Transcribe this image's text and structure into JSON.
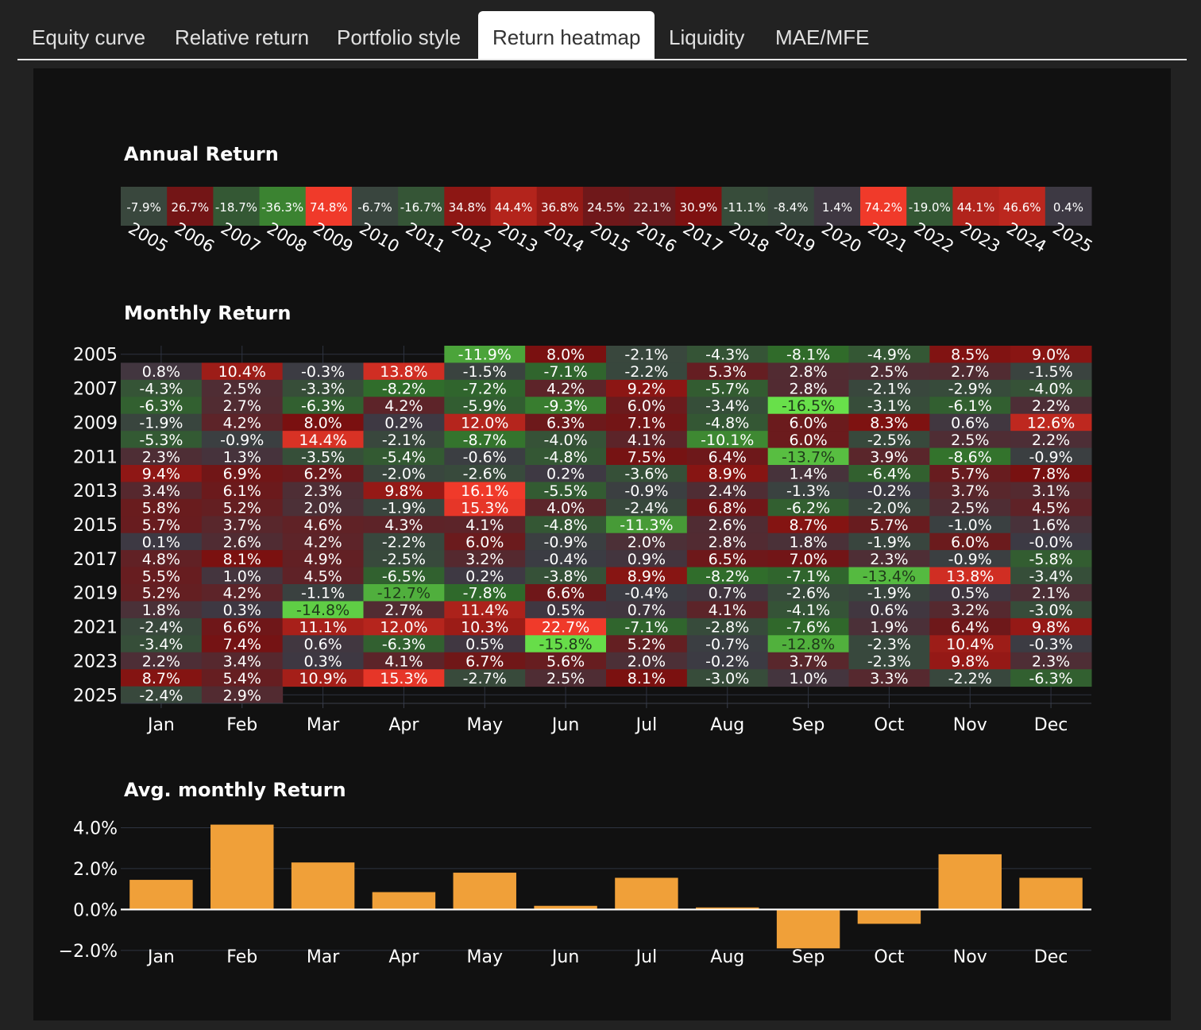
{
  "tabs": [
    {
      "label": "Equity curve",
      "active": false
    },
    {
      "label": "Relative return",
      "active": false
    },
    {
      "label": "Portfolio style",
      "active": false
    },
    {
      "label": "Return heatmap",
      "active": true
    },
    {
      "label": "Liquidity",
      "active": false
    },
    {
      "label": "MAE/MFE",
      "active": false
    }
  ],
  "colors": {
    "background": "#111111",
    "neutral": "#3c3a44",
    "positive_max": "#f03a2a",
    "positive_mid": "#7a1010",
    "negative_mid": "#2f6a2a",
    "negative_max": "#68e04a",
    "bar": "#f0a039"
  },
  "chart_data": [
    {
      "type": "heatmap",
      "title": "Annual Return",
      "x": [
        "2005",
        "2006",
        "2007",
        "2008",
        "2009",
        "2010",
        "2011",
        "2012",
        "2013",
        "2014",
        "2015",
        "2016",
        "2017",
        "2018",
        "2019",
        "2020",
        "2021",
        "2022",
        "2023",
        "2024",
        "2025"
      ],
      "values": [
        -7.9,
        26.7,
        -18.7,
        -36.3,
        74.8,
        -6.7,
        -16.7,
        34.8,
        44.4,
        36.8,
        24.5,
        22.1,
        30.9,
        -11.1,
        -8.4,
        1.4,
        74.2,
        -19.0,
        44.1,
        46.6,
        0.4
      ],
      "labels": [
        "-7.9%",
        "26.7%",
        "-18.7%",
        "-36.3%",
        "74.8%",
        "-6.7%",
        "-16.7%",
        "34.8%",
        "44.4%",
        "36.8%",
        "24.5%",
        "22.1%",
        "30.9%",
        "-11.1%",
        "-8.4%",
        "1.4%",
        "74.2%",
        "-19.0%",
        "44.1%",
        "46.6%",
        "0.4%"
      ]
    },
    {
      "type": "heatmap",
      "title": "Monthly Return",
      "x": [
        "Jan",
        "Feb",
        "Mar",
        "Apr",
        "May",
        "Jun",
        "Jul",
        "Aug",
        "Sep",
        "Oct",
        "Nov",
        "Dec"
      ],
      "y": [
        "2005",
        "2006",
        "2007",
        "2008",
        "2009",
        "2010",
        "2011",
        "2012",
        "2013",
        "2014",
        "2015",
        "2016",
        "2017",
        "2018",
        "2019",
        "2020",
        "2021",
        "2022",
        "2023",
        "2024",
        "2025"
      ],
      "y_tick_labels": [
        "2005",
        "2007",
        "2009",
        "2011",
        "2013",
        "2015",
        "2017",
        "2019",
        "2021",
        "2023",
        "2025"
      ],
      "values": [
        [
          null,
          null,
          null,
          null,
          -11.9,
          8.0,
          -2.1,
          -4.3,
          -8.1,
          -4.9,
          8.5,
          9.0
        ],
        [
          0.8,
          10.4,
          -0.3,
          13.8,
          -1.5,
          -7.1,
          -2.2,
          5.3,
          2.8,
          2.5,
          2.7,
          -1.5
        ],
        [
          -4.3,
          2.5,
          -3.3,
          -8.2,
          -7.2,
          4.2,
          9.2,
          -5.7,
          2.8,
          -2.1,
          -2.9,
          -4.0
        ],
        [
          -6.3,
          2.7,
          -6.3,
          4.2,
          -5.9,
          -9.3,
          6.0,
          -3.4,
          -16.5,
          -3.1,
          -6.1,
          2.2
        ],
        [
          -1.9,
          4.2,
          8.0,
          0.2,
          12.0,
          6.3,
          7.1,
          -4.8,
          6.0,
          8.3,
          0.6,
          12.6
        ],
        [
          -5.3,
          -0.9,
          14.4,
          -2.1,
          -8.7,
          -4.0,
          4.1,
          -10.1,
          6.0,
          -2.5,
          2.5,
          2.2
        ],
        [
          2.3,
          1.3,
          -3.5,
          -5.4,
          -0.6,
          -4.8,
          7.5,
          6.4,
          -13.7,
          3.9,
          -8.6,
          -0.9
        ],
        [
          9.4,
          6.9,
          6.2,
          -2.0,
          -2.6,
          0.2,
          -3.6,
          8.9,
          1.4,
          -6.4,
          5.7,
          7.8
        ],
        [
          3.4,
          6.1,
          2.3,
          9.8,
          16.1,
          -5.5,
          -0.9,
          2.4,
          -1.3,
          -0.2,
          3.7,
          3.1
        ],
        [
          5.8,
          5.2,
          2.0,
          -1.9,
          15.3,
          4.0,
          -2.4,
          6.8,
          -6.2,
          -2.0,
          2.5,
          4.5
        ],
        [
          5.7,
          3.7,
          4.6,
          4.3,
          4.1,
          -4.8,
          -11.3,
          2.6,
          8.7,
          5.7,
          -1.0,
          1.6
        ],
        [
          0.1,
          2.6,
          4.2,
          -2.2,
          6.0,
          -0.9,
          2.0,
          2.8,
          1.8,
          -1.9,
          6.0,
          -0.0
        ],
        [
          4.8,
          8.1,
          4.9,
          -2.5,
          3.2,
          -0.4,
          0.9,
          6.5,
          7.0,
          2.3,
          -0.9,
          -5.8
        ],
        [
          5.5,
          1.0,
          4.5,
          -6.5,
          0.2,
          -3.8,
          8.9,
          -8.2,
          -7.1,
          -13.4,
          13.8,
          -3.4
        ],
        [
          5.2,
          4.2,
          -1.1,
          -12.7,
          -7.8,
          6.6,
          -0.4,
          0.7,
          -2.6,
          -1.9,
          0.5,
          2.1
        ],
        [
          1.8,
          0.3,
          -14.8,
          2.7,
          11.4,
          0.5,
          0.7,
          4.1,
          -4.1,
          0.6,
          3.2,
          -3.0
        ],
        [
          -2.4,
          6.6,
          11.1,
          12.0,
          10.3,
          22.7,
          -7.1,
          -2.8,
          -7.6,
          1.9,
          6.4,
          9.8
        ],
        [
          -3.4,
          7.4,
          0.6,
          -6.3,
          0.5,
          -15.8,
          5.2,
          -0.7,
          -12.8,
          -2.3,
          10.4,
          -0.3
        ],
        [
          2.2,
          3.4,
          0.3,
          4.1,
          6.7,
          5.6,
          2.0,
          -0.2,
          3.7,
          -2.3,
          9.8,
          2.3
        ],
        [
          8.7,
          5.4,
          10.9,
          15.3,
          -2.7,
          2.5,
          8.1,
          -3.0,
          1.0,
          3.3,
          -2.2,
          -6.3
        ],
        [
          -2.4,
          2.9,
          null,
          null,
          null,
          null,
          null,
          null,
          null,
          null,
          null,
          null
        ]
      ]
    },
    {
      "type": "bar",
      "title": "Avg. monthly Return",
      "categories": [
        "Jan",
        "Feb",
        "Mar",
        "Apr",
        "May",
        "Jun",
        "Jul",
        "Aug",
        "Sep",
        "Oct",
        "Nov",
        "Dec"
      ],
      "values": [
        1.45,
        4.15,
        2.3,
        0.85,
        1.8,
        0.18,
        1.55,
        0.1,
        -1.9,
        -0.7,
        2.7,
        1.55
      ],
      "y_ticks": [
        4.0,
        2.0,
        0.0,
        -2.0
      ],
      "y_tick_labels": [
        "4.0%",
        "2.0%",
        "0.0%",
        "−2.0%"
      ],
      "ylim": [
        -2.2,
        4.6
      ],
      "grid": true
    }
  ]
}
